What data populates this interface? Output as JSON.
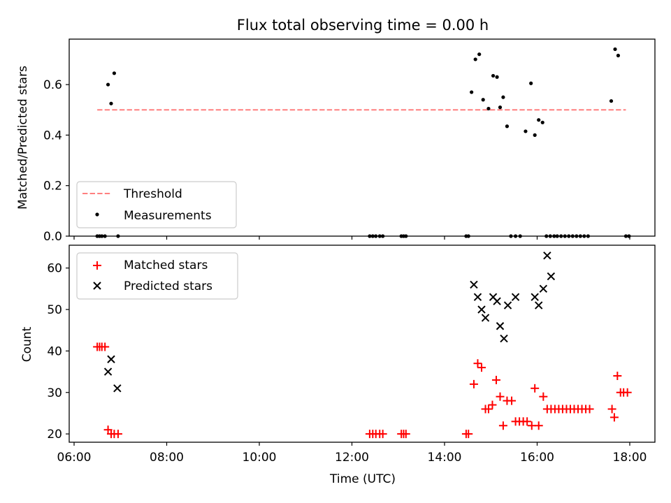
{
  "chart_data": {
    "title": "Flux total observing time = 0.00 h",
    "xlabel": "Time (UTC)",
    "xticks": [
      "06:00",
      "08:00",
      "10:00",
      "12:00",
      "14:00",
      "16:00",
      "18:00"
    ],
    "top": {
      "type": "scatter",
      "ylabel": "Matched/Predicted stars",
      "ylim": [
        0,
        0.78
      ],
      "yticks": [
        "0.0",
        "0.2",
        "0.4",
        "0.6"
      ],
      "legend_position": "lower-left",
      "threshold": {
        "name": "Threshold",
        "value": 0.5,
        "x_range": [
          "06:30",
          "17:55"
        ],
        "color": "#ff7f7f"
      },
      "measurements": {
        "name": "Measurements",
        "color": "#000000",
        "x": [
          "06:30",
          "06:33",
          "06:36",
          "06:40",
          "06:44",
          "06:48",
          "06:52",
          "06:57",
          "12:23",
          "12:27",
          "12:31",
          "12:36",
          "12:40",
          "13:04",
          "13:07",
          "13:10",
          "14:28",
          "14:31",
          "14:35",
          "14:40",
          "14:45",
          "14:50",
          "14:57",
          "15:03",
          "15:08",
          "15:12",
          "15:16",
          "15:21",
          "15:26",
          "15:32",
          "15:38",
          "15:45",
          "15:52",
          "15:57",
          "16:02",
          "16:07",
          "16:12",
          "16:17",
          "16:22",
          "16:26",
          "16:31",
          "16:36",
          "16:41",
          "16:46",
          "16:51",
          "16:56",
          "17:01",
          "17:06",
          "17:36",
          "17:41",
          "17:45",
          "17:55",
          "17:59"
        ],
        "y": [
          0,
          0,
          0,
          0,
          0.6,
          0.525,
          0.645,
          0,
          0,
          0,
          0,
          0,
          0,
          0,
          0,
          0,
          0,
          0,
          0.57,
          0.7,
          0.72,
          0.54,
          0.505,
          0.635,
          0.63,
          0.51,
          0.55,
          0.435,
          0,
          0,
          0,
          0.415,
          0.605,
          0.4,
          0.46,
          0.45,
          0,
          0,
          0,
          0,
          0,
          0,
          0,
          0,
          0,
          0,
          0,
          0,
          0.535,
          0.74,
          0.715,
          0,
          0
        ]
      }
    },
    "bottom": {
      "type": "scatter",
      "ylabel": "Count",
      "ylim": [
        18,
        65.5
      ],
      "yticks": [
        "20",
        "30",
        "40",
        "50",
        "60"
      ],
      "legend_position": "top-left",
      "matched": {
        "name": "Matched stars",
        "color": "#ff0000",
        "x": [
          "06:30",
          "06:33",
          "06:36",
          "06:40",
          "06:44",
          "06:48",
          "06:52",
          "06:57",
          "12:23",
          "12:27",
          "12:31",
          "12:36",
          "12:40",
          "13:04",
          "13:07",
          "13:10",
          "14:28",
          "14:31",
          "14:38",
          "14:43",
          "14:48",
          "14:53",
          "14:57",
          "15:02",
          "15:07",
          "15:12",
          "15:16",
          "15:21",
          "15:27",
          "15:32",
          "15:37",
          "15:42",
          "15:47",
          "15:53",
          "15:57",
          "16:02",
          "16:08",
          "16:13",
          "16:18",
          "16:23",
          "16:28",
          "16:33",
          "16:38",
          "16:43",
          "16:48",
          "16:53",
          "16:58",
          "17:03",
          "17:08",
          "17:37",
          "17:40",
          "17:44",
          "17:48",
          "17:52",
          "17:57"
        ],
        "y": [
          41,
          41,
          41,
          41,
          21,
          20,
          20,
          20,
          20,
          20,
          20,
          20,
          20,
          20,
          20,
          20,
          20,
          20,
          32,
          37,
          36,
          26,
          26,
          27,
          33,
          29,
          22,
          28,
          28,
          23,
          23,
          23,
          23,
          22,
          31,
          22,
          29,
          26,
          26,
          26,
          26,
          26,
          26,
          26,
          26,
          26,
          26,
          26,
          26,
          26,
          24,
          34,
          30,
          30,
          30
        ]
      },
      "predicted": {
        "name": "Predicted stars",
        "color": "#000000",
        "x": [
          "06:44",
          "06:48",
          "06:56",
          "14:38",
          "14:43",
          "14:48",
          "14:53",
          "15:03",
          "15:08",
          "15:12",
          "15:17",
          "15:22",
          "15:32",
          "15:57",
          "16:02",
          "16:08",
          "16:13",
          "16:18"
        ],
        "y": [
          35,
          38,
          31,
          56,
          53,
          50,
          48,
          53,
          52,
          46,
          43,
          51,
          53,
          53,
          51,
          55,
          63,
          58
        ]
      }
    }
  }
}
